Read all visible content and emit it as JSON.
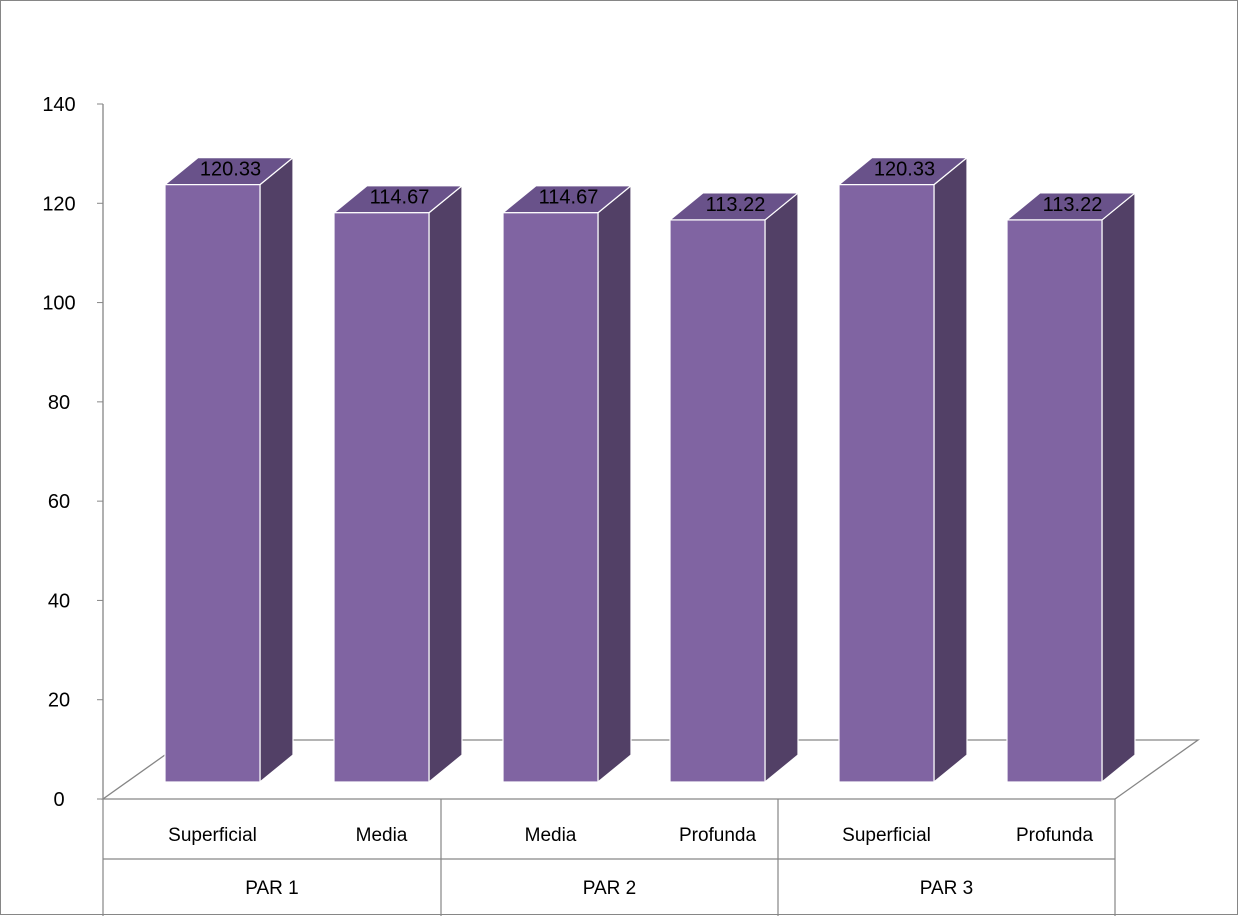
{
  "chart_data": {
    "type": "bar",
    "title": "",
    "xlabel": "",
    "ylabel": "",
    "ylim": [
      0,
      140
    ],
    "yticks": [
      0,
      20,
      40,
      60,
      80,
      100,
      120,
      140
    ],
    "grid": false,
    "legend": "none",
    "three_d": true,
    "groups": [
      {
        "label": "PAR 1",
        "categories": [
          "Superficial",
          "Media"
        ]
      },
      {
        "label": "PAR 2",
        "categories": [
          "Media",
          "Profunda"
        ]
      },
      {
        "label": "PAR 3",
        "categories": [
          "Superficial",
          "Profunda"
        ]
      }
    ],
    "categories": [
      "Superficial",
      "Media",
      "Media",
      "Profunda",
      "Superficial",
      "Profunda"
    ],
    "values": [
      120.33,
      114.67,
      114.67,
      113.22,
      120.33,
      113.22
    ],
    "data_labels": [
      "120.33",
      "114.67",
      "114.67",
      "113.22",
      "120.33",
      "113.22"
    ],
    "colors": {
      "bar_front": "#8064a2",
      "bar_side": "#524066",
      "bar_top": "#69528a",
      "bar_outline": "#ffffff",
      "axis": "#868686",
      "floor_shadow": "#d9d9d9"
    }
  }
}
